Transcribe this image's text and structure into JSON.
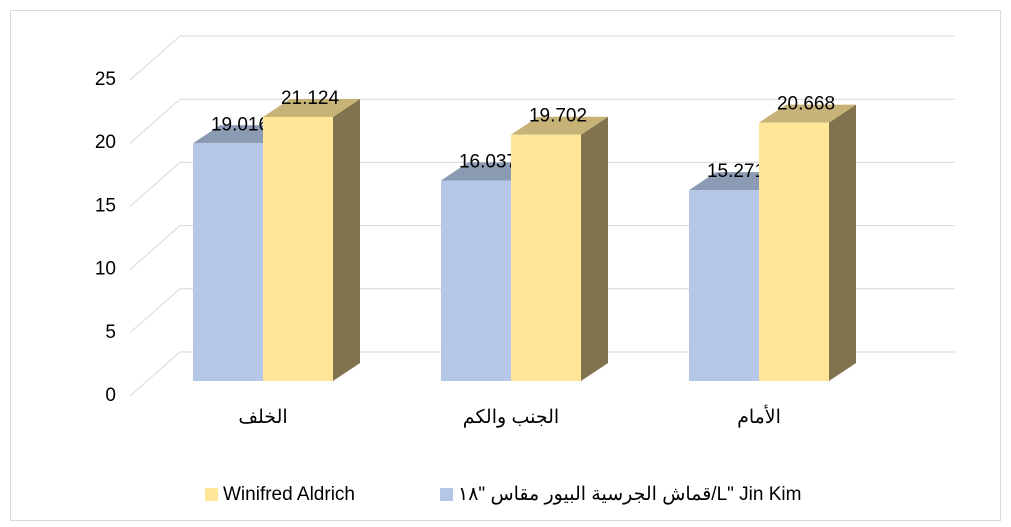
{
  "chart_data": {
    "type": "bar3d",
    "categories": [
      "الخلف",
      "الجنب والكم",
      "الأمام"
    ],
    "series": [
      {
        "name": "قماش الجرسية البيور مقاس \"١٨/L\" Jin Kim",
        "color": "#b4c7e7",
        "values": [
          19.016,
          16.037,
          15.271
        ]
      },
      {
        "name": "Winifred Aldrich",
        "color": "#ffe699",
        "values": [
          21.124,
          19.702,
          20.668
        ]
      }
    ],
    "ylim": [
      0,
      25
    ],
    "yticks": [
      0,
      5,
      10,
      15,
      20,
      25
    ],
    "grid": true,
    "legend": "bottom"
  }
}
